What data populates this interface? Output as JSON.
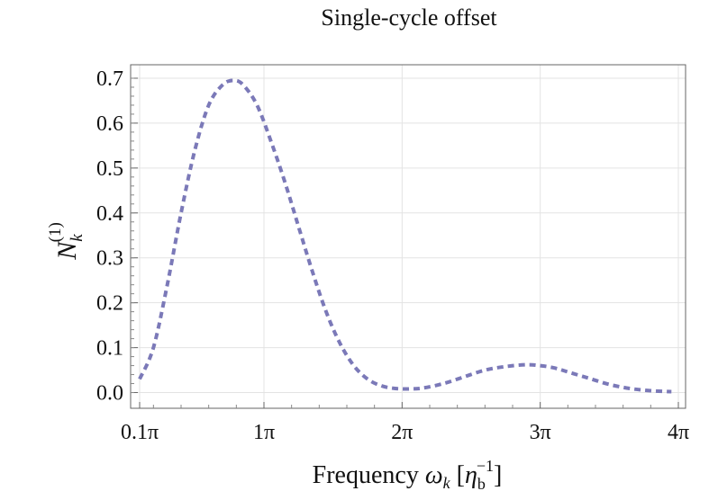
{
  "chart_data": {
    "type": "line",
    "title": "Single-cycle offset",
    "xlabel": {
      "prefix": "Frequency ",
      "omega": "ω",
      "sub_k": "k",
      "open_bracket": " [",
      "eta": "η",
      "sub_b": "b",
      "sup": "−1",
      "close_bracket": "]"
    },
    "ylabel": {
      "base": "N",
      "sub": "k",
      "sup": "(1)"
    },
    "x_unit": "π",
    "xlim": [
      0.1,
      4.0
    ],
    "ylim": [
      -0.035,
      0.73
    ],
    "xticks": [
      {
        "value": 0.1,
        "label": "0.1π"
      },
      {
        "value": 1,
        "label": "1π"
      },
      {
        "value": 2,
        "label": "2π"
      },
      {
        "value": 3,
        "label": "3π"
      },
      {
        "value": 4,
        "label": "4π"
      }
    ],
    "yticks": [
      {
        "value": 0.0,
        "label": "0.0"
      },
      {
        "value": 0.1,
        "label": "0.1"
      },
      {
        "value": 0.2,
        "label": "0.2"
      },
      {
        "value": 0.3,
        "label": "0.3"
      },
      {
        "value": 0.4,
        "label": "0.4"
      },
      {
        "value": 0.5,
        "label": "0.5"
      },
      {
        "value": 0.6,
        "label": "0.6"
      },
      {
        "value": 0.7,
        "label": "0.7"
      }
    ],
    "grid": true,
    "line_style": "dashed",
    "series": [
      {
        "color": "#7b79b8",
        "x": [
          0.1,
          0.2,
          0.3,
          0.4,
          0.5,
          0.6,
          0.7,
          0.78,
          0.85,
          0.95,
          1.05,
          1.15,
          1.25,
          1.35,
          1.45,
          1.55,
          1.65,
          1.75,
          1.85,
          1.95,
          2.05,
          2.15,
          2.3,
          2.45,
          2.6,
          2.75,
          2.9,
          3.0,
          3.1,
          3.2,
          3.35,
          3.5,
          3.65,
          3.8,
          3.95
        ],
        "y": [
          0.03,
          0.1,
          0.24,
          0.4,
          0.54,
          0.64,
          0.685,
          0.695,
          0.685,
          0.64,
          0.56,
          0.47,
          0.37,
          0.27,
          0.18,
          0.11,
          0.06,
          0.03,
          0.015,
          0.009,
          0.008,
          0.01,
          0.02,
          0.035,
          0.05,
          0.058,
          0.062,
          0.06,
          0.055,
          0.046,
          0.032,
          0.018,
          0.009,
          0.004,
          0.002
        ]
      }
    ]
  }
}
